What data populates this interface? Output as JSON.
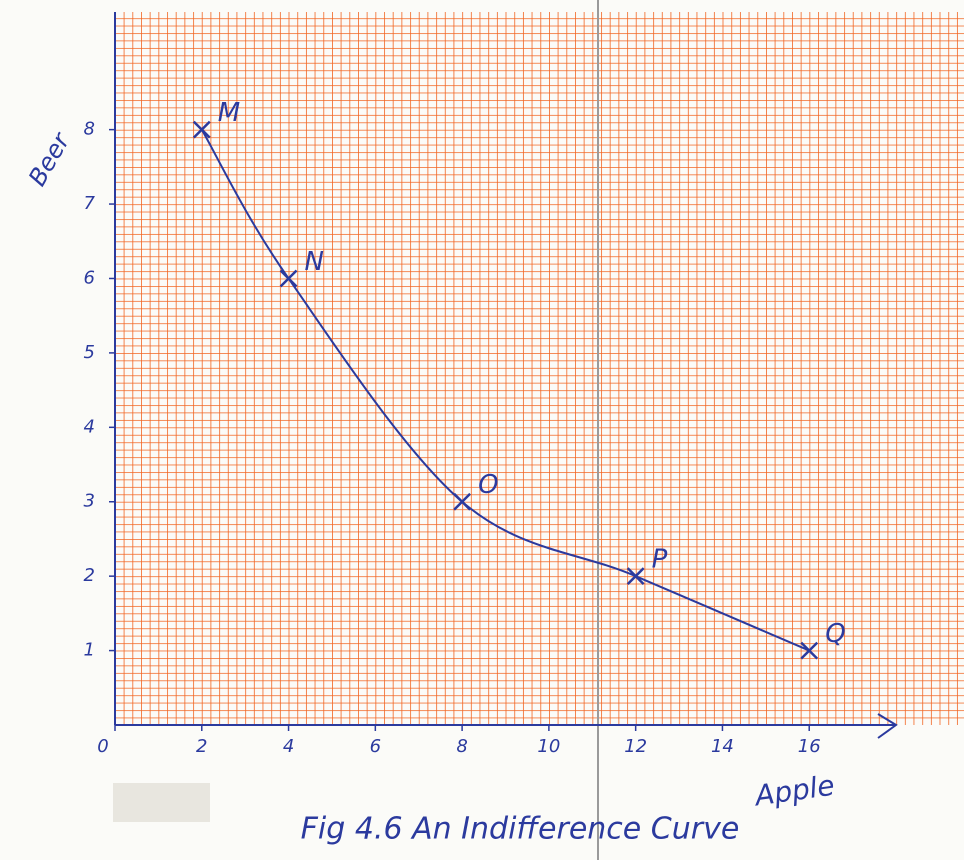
{
  "chart_data": {
    "type": "line",
    "title": "Fig 4.6 An Indifference Curve",
    "x_label": "Apple",
    "y_label": "Beer",
    "x": [
      2,
      4,
      8,
      12,
      16
    ],
    "series": [
      {
        "color": "#2b3a9e",
        "values": [
          8,
          6,
          3,
          2,
          1
        ]
      }
    ],
    "point_labels": [
      "M",
      "N",
      "O",
      "P",
      "Q"
    ],
    "xlim": [
      0,
      18
    ],
    "ylim": [
      0,
      9.5
    ],
    "xticks": [
      0,
      2,
      4,
      6,
      8,
      10,
      12,
      14,
      16
    ],
    "yticks": [
      1,
      2,
      3,
      4,
      5,
      6,
      7,
      8
    ],
    "paper_color": "#f26522"
  }
}
